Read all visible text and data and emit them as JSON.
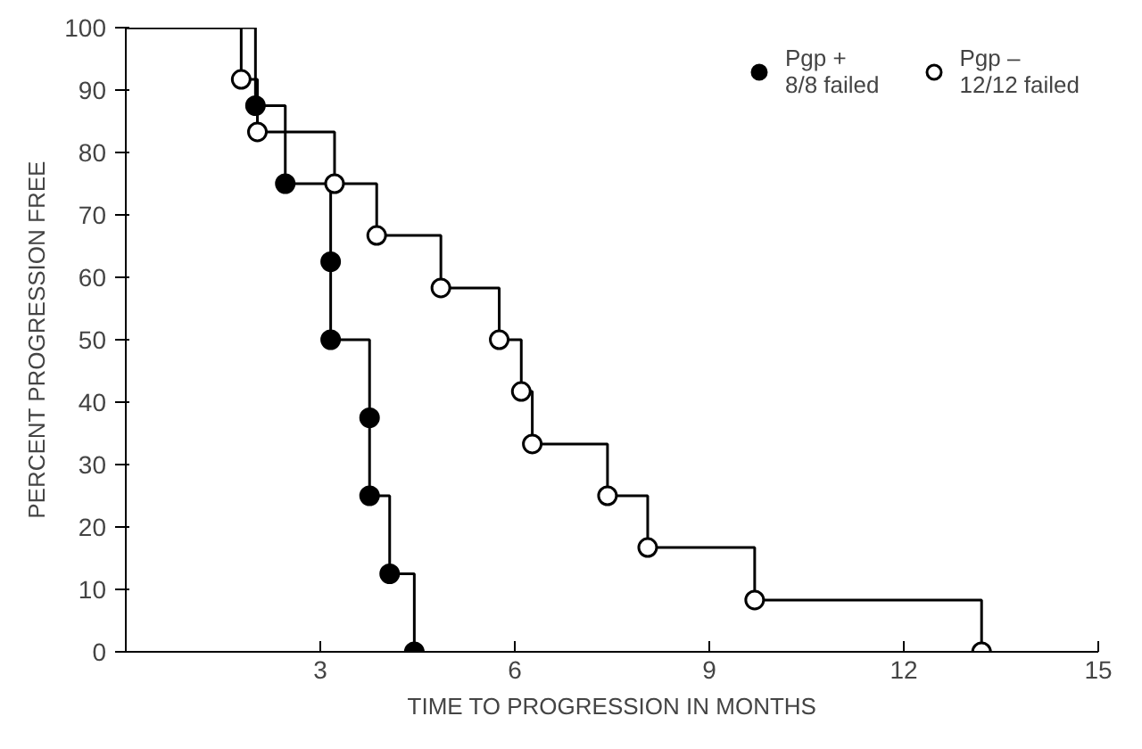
{
  "chart_data": {
    "type": "step",
    "xlabel": "TIME TO PROGRESSION IN MONTHS",
    "ylabel": "PERCENT PROGRESSION FREE",
    "xlim": [
      0,
      15
    ],
    "xticks": [
      3,
      6,
      9,
      12,
      15
    ],
    "ylim": [
      0,
      100
    ],
    "yticks": [
      0,
      10,
      20,
      30,
      40,
      50,
      60,
      70,
      80,
      90,
      100
    ],
    "grid": false,
    "legend": "top right",
    "marker": "circle",
    "series": [
      {
        "name": "Pgp +\n8/8 failed",
        "color": "#000000",
        "colors": [
          null,
          "#000000",
          "#000000",
          "#000000",
          "#000000",
          "#000000",
          "#000000",
          "#000000",
          "#000000"
        ],
        "x": [
          0,
          2.0,
          2.46,
          3.16,
          3.16,
          3.76,
          3.76,
          4.07,
          4.45
        ],
        "values": [
          100,
          87.5,
          75,
          62.5,
          50,
          37.5,
          25,
          12.5,
          0
        ]
      },
      {
        "name": "Pgp –\n12/12 failed",
        "color": "#000000",
        "colors": [
          null,
          "#ffffff",
          "#ffffff",
          "#ffffff",
          "#ffffff",
          "#ffffff",
          "#ffffff",
          "#ffffff",
          "#ffffff",
          "#ffffff",
          "#ffffff",
          "#ffffff",
          "#ffffff"
        ],
        "x": [
          0,
          1.78,
          2.03,
          3.22,
          3.87,
          4.86,
          5.76,
          6.1,
          6.27,
          7.43,
          8.05,
          9.7,
          13.2
        ],
        "values": [
          100,
          91.7,
          83.3,
          75,
          66.7,
          58.3,
          50,
          41.7,
          33.3,
          25,
          16.7,
          8.3,
          0
        ]
      }
    ]
  }
}
